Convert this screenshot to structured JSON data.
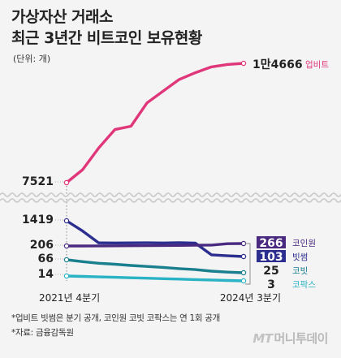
{
  "title": "가상자산 거래소",
  "subtitle": "최근 3년간 비트코인 보유현황",
  "unit_label": "(단위: 개)",
  "chart_data": {
    "type": "line",
    "broken_axis": true,
    "x_start_label": "2021년 4분기",
    "x_end_label": "2024년 3분기",
    "num_points": 12,
    "series": [
      {
        "name": "업비트",
        "color": "#e0367a",
        "start_label": "7521",
        "end_label": "1만4666",
        "values": [
          7521,
          8300,
          9600,
          10700,
          10900,
          12300,
          13000,
          13700,
          14100,
          14450,
          14600,
          14666
        ]
      },
      {
        "name": "코인원",
        "color": "#4a2a80",
        "start_label": "206",
        "end_label": "266",
        "values": [
          206,
          206,
          208,
          210,
          212,
          215,
          218,
          220,
          225,
          228,
          262,
          266
        ]
      },
      {
        "name": "빗썸",
        "color": "#2b2e8f",
        "start_label": "1419",
        "end_label": "103",
        "values": [
          1419,
          900,
          300,
          295,
          300,
          305,
          295,
          310,
          290,
          120,
          110,
          103
        ]
      },
      {
        "name": "코빗",
        "color": "#1a7f8e",
        "start_label": "66",
        "end_label": "25",
        "values": [
          66,
          60,
          55,
          52,
          48,
          45,
          42,
          38,
          35,
          30,
          27,
          25
        ]
      },
      {
        "name": "코팍스",
        "color": "#2ab3c4",
        "start_label": "14",
        "end_label": "3",
        "values": [
          14,
          13,
          12,
          11,
          10,
          9,
          8,
          7,
          6,
          5,
          4,
          3
        ]
      }
    ]
  },
  "notes": {
    "line1": "*업비트 빗썸은 분기 공개, 코인원 코빗 코팍스는 연 1회 공개",
    "line2": "*자료: 금융감독원"
  },
  "logo": {
    "mark": "MT",
    "text": "머니투데이"
  }
}
